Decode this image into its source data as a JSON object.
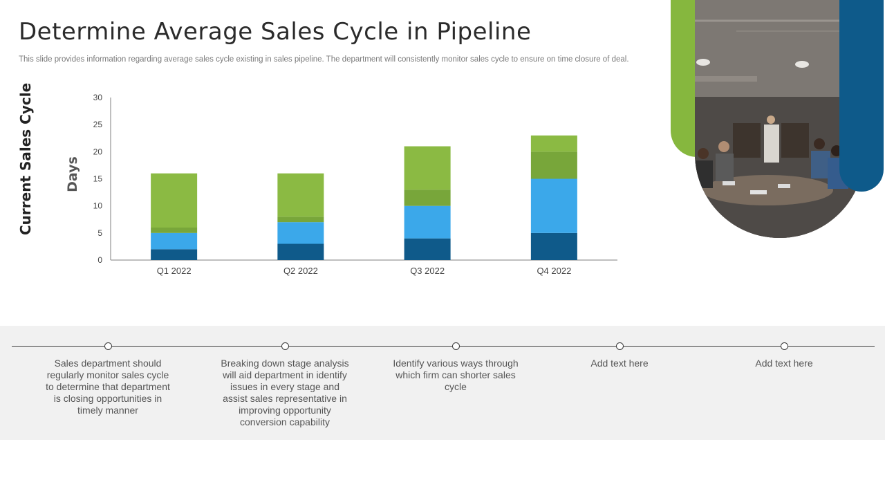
{
  "page": {
    "title": "Determine Average Sales Cycle in Pipeline",
    "subtitle": "This slide provides information regarding average sales cycle existing in sales pipeline. The department will consistently monitor sales cycle to ensure on time closure of deal.",
    "vertical_label": "Current Sales Cycle"
  },
  "notes": [
    "Sales department should regularly monitor sales cycle to determine that department is closing opportunities in timely manner",
    "Breaking down stage analysis will aid department in identify issues in every stage and assist sales representative in improving opportunity conversion capability",
    "Identify various ways through which firm can shorter sales cycle",
    "Add text here",
    "Add text here"
  ],
  "colors": {
    "accent_green": "#86b73e",
    "accent_blue": "#0e5a8a",
    "segment_colors": [
      "#0f5a8a",
      "#3ba8ea",
      "#78a63a",
      "#8bba43"
    ]
  },
  "chart_data": {
    "type": "bar",
    "stacked": true,
    "categories": [
      "Q1 2022",
      "Q2 2022",
      "Q3 2022",
      "Q4 2022"
    ],
    "series": [
      {
        "values": [
          2,
          3,
          4,
          5
        ]
      },
      {
        "values": [
          3,
          4,
          6,
          10
        ]
      },
      {
        "values": [
          1,
          1,
          3,
          5
        ]
      },
      {
        "values": [
          10,
          8,
          8,
          3
        ]
      }
    ],
    "ylabel": "Days",
    "ylim": [
      0,
      30
    ],
    "yticks": [
      0,
      5,
      10,
      15,
      20,
      25,
      30
    ],
    "grid": false,
    "legend": "none"
  }
}
